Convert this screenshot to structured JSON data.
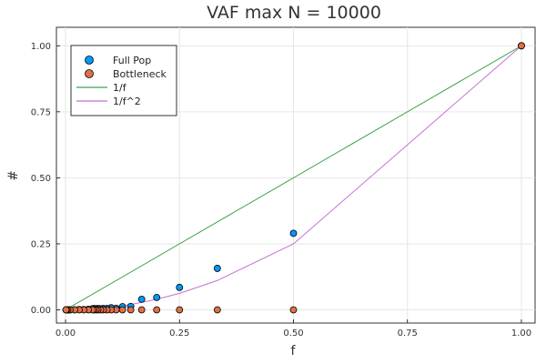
{
  "chart_data": {
    "type": "scatter",
    "title": "VAF max N = 10000",
    "xlabel": "f",
    "ylabel": "#",
    "xlim": [
      -0.02,
      1.03
    ],
    "ylim": [
      -0.05,
      1.07
    ],
    "xticks": [
      0,
      0.25,
      0.5,
      0.75,
      1.0
    ],
    "xtick_labels": [
      "0.00",
      "0.25",
      "0.50",
      "0.75",
      "1.00"
    ],
    "yticks": [
      0,
      0.25,
      0.5,
      0.75,
      1.0
    ],
    "ytick_labels": [
      "0.00",
      "0.25",
      "0.50",
      "0.75",
      "1.00"
    ],
    "grid": true,
    "legend_position": "top-left",
    "series": [
      {
        "name": "Full Pop",
        "kind": "scatter",
        "color": "#009AFA",
        "points": [
          [
            1.0,
            1.0
          ],
          [
            0.5,
            0.29
          ],
          [
            0.333,
            0.157
          ],
          [
            0.25,
            0.085
          ],
          [
            0.2,
            0.047
          ],
          [
            0.167,
            0.04
          ],
          [
            0.143,
            0.013
          ],
          [
            0.125,
            0.012
          ],
          [
            0.111,
            0.006
          ],
          [
            0.1,
            0.008
          ],
          [
            0.091,
            0.005
          ],
          [
            0.083,
            0.005
          ],
          [
            0.077,
            0.004
          ],
          [
            0.071,
            0.005
          ],
          [
            0.067,
            0.004
          ],
          [
            0.0625,
            0.005
          ],
          [
            0.059,
            0.004
          ],
          [
            0.05,
            0.002
          ],
          [
            0.04,
            0.001
          ],
          [
            0.03,
            0.001
          ],
          [
            0.02,
            0.0005
          ],
          [
            0.01,
            0.0
          ],
          [
            0.005,
            0.0
          ],
          [
            0.002,
            0.0
          ],
          [
            0.001,
            0.0
          ]
        ]
      },
      {
        "name": "Bottleneck",
        "kind": "scatter",
        "color": "#E26F46",
        "points": [
          [
            1.0,
            1.0
          ],
          [
            0.5,
            0.0
          ],
          [
            0.333,
            0.0
          ],
          [
            0.25,
            0.0
          ],
          [
            0.2,
            0.0
          ],
          [
            0.167,
            0.0
          ],
          [
            0.143,
            0.0
          ],
          [
            0.125,
            0.0
          ],
          [
            0.111,
            0.0
          ],
          [
            0.1,
            0.0
          ],
          [
            0.091,
            0.0
          ],
          [
            0.083,
            0.0
          ],
          [
            0.077,
            0.0
          ],
          [
            0.071,
            0.0
          ],
          [
            0.067,
            0.0
          ],
          [
            0.0625,
            0.0
          ],
          [
            0.059,
            0.0
          ],
          [
            0.05,
            0.0
          ],
          [
            0.04,
            0.0
          ],
          [
            0.03,
            0.0
          ],
          [
            0.02,
            0.0
          ],
          [
            0.01,
            0.0
          ],
          [
            0.005,
            0.0
          ],
          [
            0.002,
            0.0
          ],
          [
            0.001,
            0.0
          ]
        ]
      },
      {
        "name": "1/f",
        "kind": "line",
        "color": "#3DA44D",
        "points": [
          [
            0.0,
            0.0
          ],
          [
            0.5,
            0.5
          ],
          [
            1.0,
            1.0
          ]
        ]
      },
      {
        "name": "1/f^2",
        "kind": "line",
        "color": "#C271D2",
        "points": [
          [
            0.0,
            0.0
          ],
          [
            0.05,
            0.0025
          ],
          [
            0.1,
            0.01
          ],
          [
            0.143,
            0.02
          ],
          [
            0.2,
            0.04
          ],
          [
            0.25,
            0.0625
          ],
          [
            0.333,
            0.111
          ],
          [
            0.5,
            0.25
          ],
          [
            1.0,
            1.0
          ]
        ]
      }
    ]
  }
}
